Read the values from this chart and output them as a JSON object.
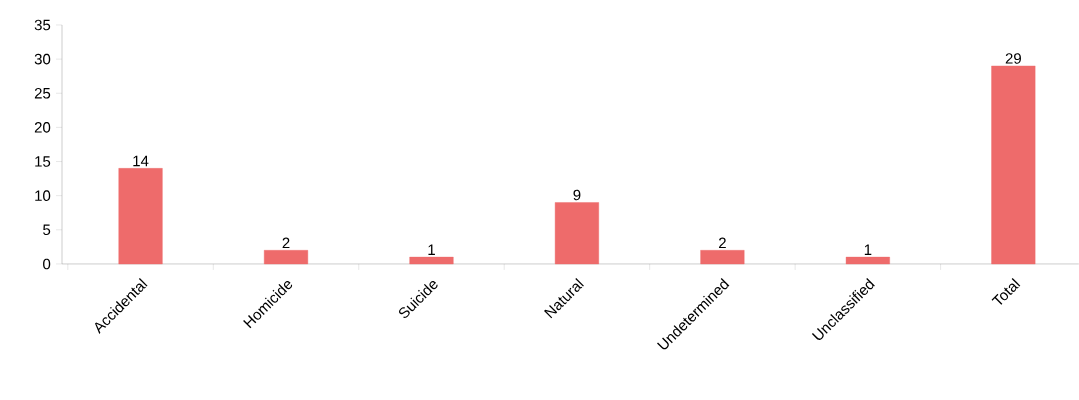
{
  "chart_data": {
    "type": "bar",
    "categories": [
      "Accidental",
      "Homicide",
      "Suicide",
      "Natural",
      "Undetermined",
      "Unclassified",
      "Total"
    ],
    "values": [
      14,
      2,
      1,
      9,
      2,
      1,
      29
    ],
    "color": "#ee6b6b",
    "ylim": [
      0,
      35
    ],
    "yticks": [
      0,
      5,
      10,
      15,
      20,
      25,
      30,
      35
    ],
    "data_labels": true
  }
}
